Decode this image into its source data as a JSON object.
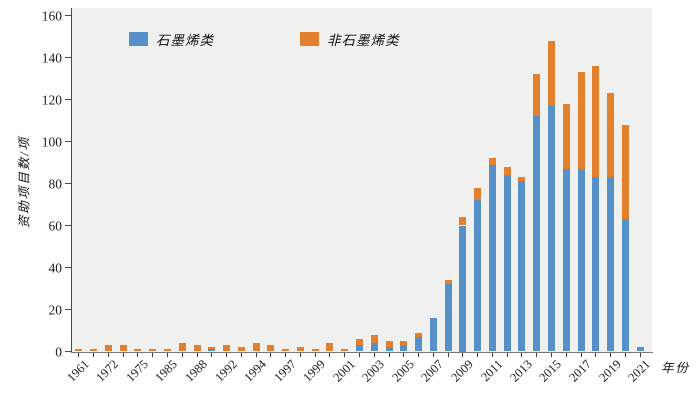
{
  "chart_data": {
    "type": "bar",
    "stacked": true,
    "xlabel": "年份",
    "ylabel": "资助项目数/项",
    "ylim": [
      0,
      160
    ],
    "y_ticks": [
      0,
      20,
      40,
      60,
      80,
      100,
      120,
      140,
      160
    ],
    "grid": false,
    "legend_position": "top-left-inside",
    "plot_background": "#f0f0ee",
    "legend": [
      {
        "name": "石墨烯类",
        "color": "#5590c8"
      },
      {
        "name": "非石墨烯类",
        "color": "#e2802d"
      }
    ],
    "categories": [
      "1961",
      "",
      "1972",
      "",
      "1975",
      "",
      "1985",
      "",
      "1988",
      "",
      "1992",
      "",
      "1994",
      "",
      "1997",
      "",
      "1999",
      "",
      "2001",
      "",
      "2003",
      "",
      "2005",
      "",
      "2007",
      "",
      "2009",
      "",
      "2011",
      "",
      "2013",
      "",
      "2015",
      "",
      "2017",
      "",
      "2019",
      "",
      "2021"
    ],
    "series": [
      {
        "name": "石墨烯类",
        "values": [
          0,
          0,
          0,
          0,
          0,
          0,
          0,
          0,
          0,
          1,
          0,
          0,
          0,
          0,
          0,
          0,
          0,
          0,
          0,
          3,
          4,
          2,
          3,
          7,
          16,
          32,
          60,
          72,
          89,
          84,
          81,
          112,
          117,
          87,
          87,
          83,
          83,
          63,
          2
        ]
      },
      {
        "name": "非石墨烯类",
        "values": [
          1,
          1,
          3,
          3,
          1,
          1,
          1,
          4,
          3,
          1,
          3,
          2,
          4,
          3,
          1,
          2,
          1,
          4,
          1,
          3,
          4,
          3,
          2,
          2,
          0,
          2,
          4,
          6,
          3,
          4,
          2,
          20,
          31,
          31,
          46,
          53,
          40,
          45,
          0
        ]
      }
    ]
  }
}
